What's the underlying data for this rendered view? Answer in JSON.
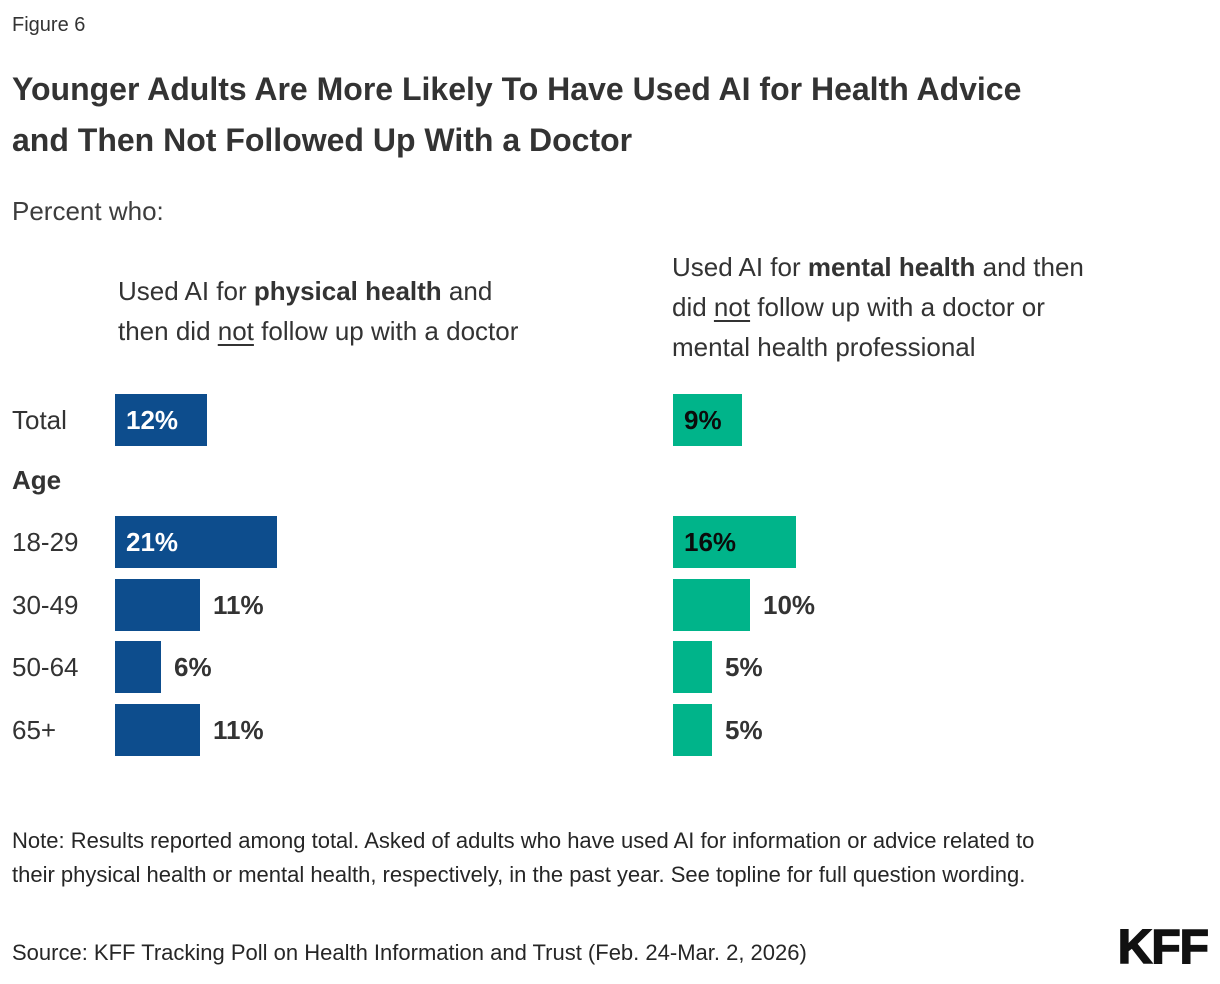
{
  "figure_label": "Figure 6",
  "title": "Younger Adults Are More Likely To Have Used AI for Health Advice and Then Not Followed Up With a Doctor",
  "subtitle": "Percent who:",
  "colors": {
    "physical_bar": "#0D4D8D",
    "mental_bar": "#00B48A",
    "text_dark": "#333333",
    "value_on_physical": "#FFFFFF",
    "value_on_mental": "#0B0B0B"
  },
  "chart_data": {
    "type": "bar",
    "orientation": "horizontal",
    "group_label": "Age",
    "categories": [
      "Total",
      "18-29",
      "30-49",
      "50-64",
      "65+"
    ],
    "series": [
      {
        "name": "Used AI for physical health and then did not follow up with a doctor",
        "color": "#0D4D8D",
        "values": [
          12,
          21,
          11,
          6,
          11
        ],
        "header_segments": [
          {
            "text": "Used AI for ",
            "style": "normal"
          },
          {
            "text": "physical health",
            "style": "bold"
          },
          {
            "text": " and",
            "style": "normal"
          },
          {
            "text": "",
            "style": "break"
          },
          {
            "text": "then did ",
            "style": "normal"
          },
          {
            "text": "not",
            "style": "underline"
          },
          {
            "text": " follow up with a doctor",
            "style": "normal"
          }
        ]
      },
      {
        "name": "Used AI for mental health and then did not follow up with a doctor or mental health professional",
        "color": "#00B48A",
        "values": [
          9,
          16,
          10,
          5,
          5
        ],
        "header_segments": [
          {
            "text": "Used AI for ",
            "style": "normal"
          },
          {
            "text": "mental health",
            "style": "bold"
          },
          {
            "text": " and then",
            "style": "normal"
          },
          {
            "text": "",
            "style": "break"
          },
          {
            "text": "did ",
            "style": "normal"
          },
          {
            "text": "not",
            "style": "underline"
          },
          {
            "text": " follow up with a doctor or",
            "style": "normal"
          },
          {
            "text": "",
            "style": "break"
          },
          {
            "text": "mental health professional",
            "style": "normal"
          }
        ]
      }
    ],
    "value_suffix": "%",
    "label_inside_rows": [
      true,
      true,
      false,
      false,
      false
    ],
    "axis_range": [
      0,
      100
    ],
    "grid": false,
    "legend_position": "column-headers"
  },
  "note": "Note: Results reported among total. Asked of adults who have used AI for information or advice related to their physical health or mental health, respectively, in the past year. See topline for full question wording.",
  "source": "Source: KFF Tracking Poll on Health Information and Trust (Feb. 24-Mar. 2, 2026)",
  "logo_text": "KFF"
}
